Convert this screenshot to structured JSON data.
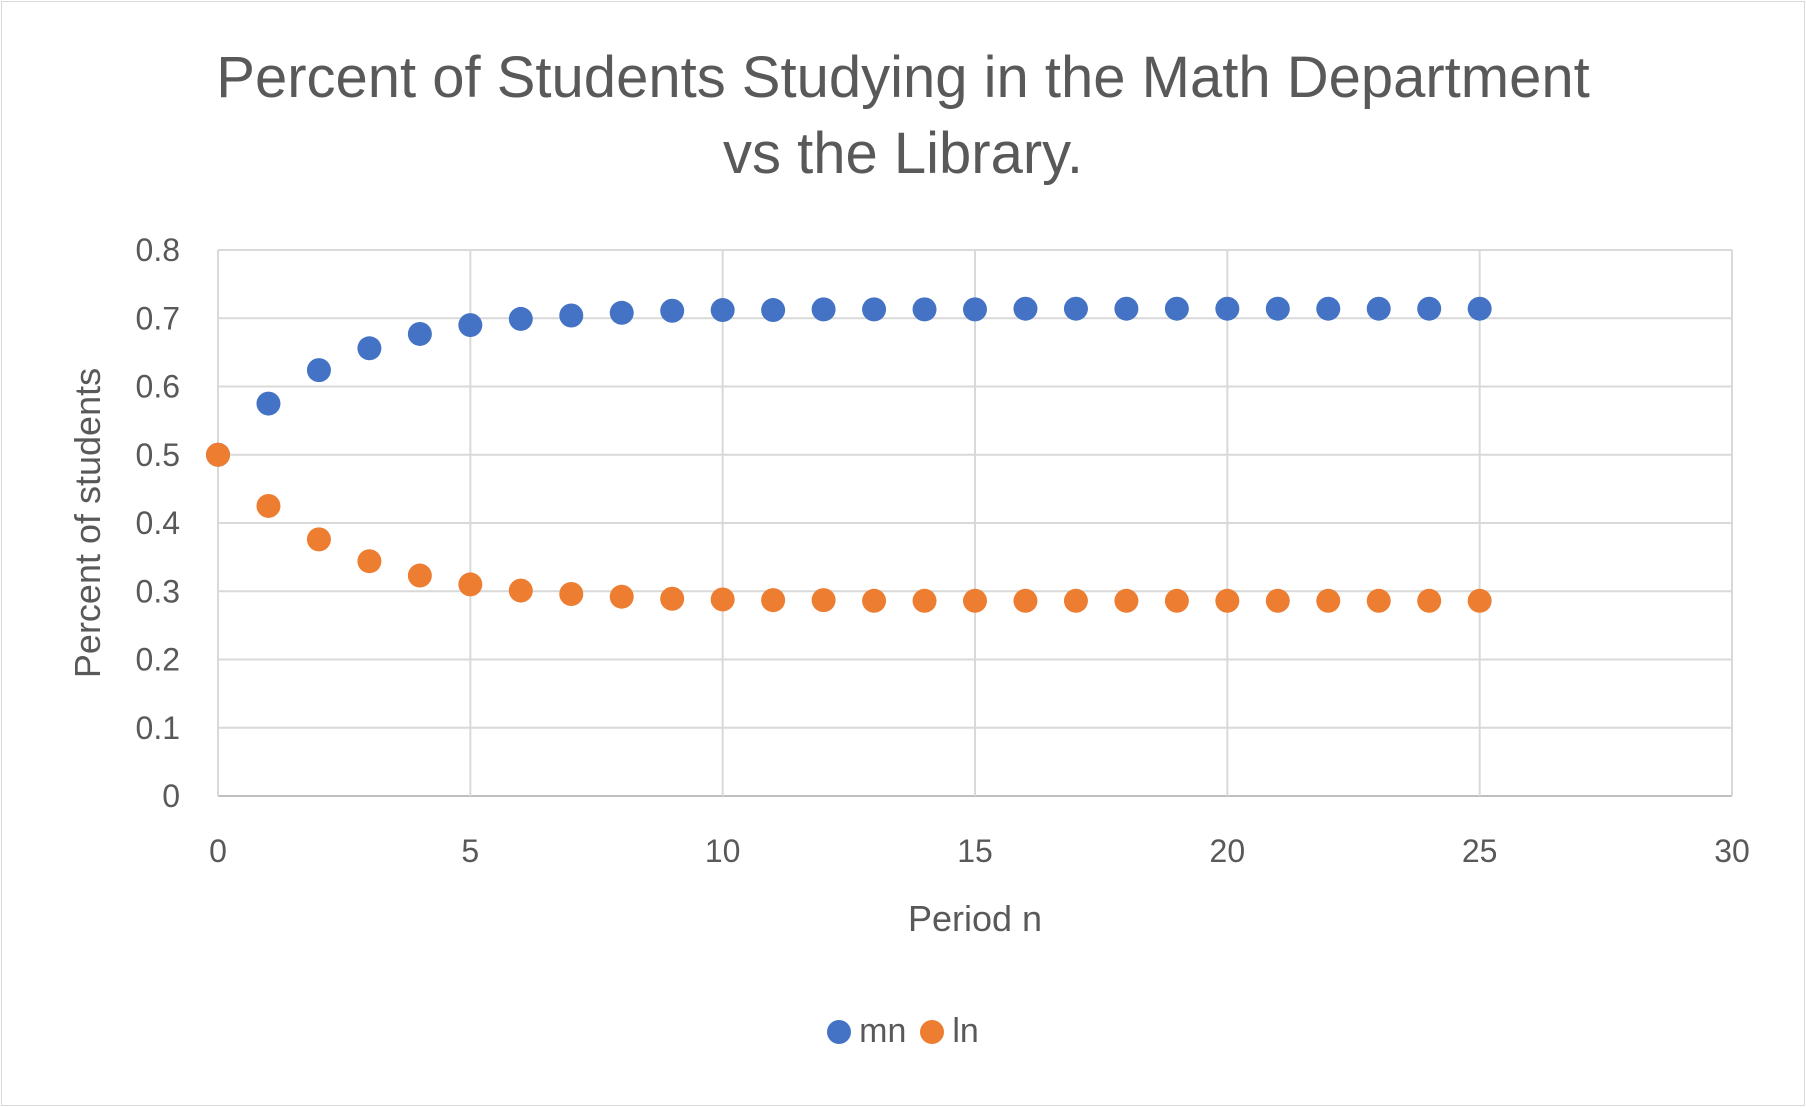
{
  "chart_data": {
    "type": "scatter",
    "title_lines": [
      "Percent of Students Studying in the Math Department",
      "vs the Library."
    ],
    "xlabel": "Period n",
    "ylabel": "Percent of students",
    "xlim": [
      0,
      30
    ],
    "ylim": [
      0,
      0.8
    ],
    "x_ticks": [
      "0",
      "5",
      "10",
      "15",
      "20",
      "25",
      "30"
    ],
    "y_ticks": [
      "0",
      "0.1",
      "0.2",
      "0.3",
      "0.4",
      "0.5",
      "0.6",
      "0.7",
      "0.8"
    ],
    "grid": true,
    "legend_position": "bottom",
    "series": [
      {
        "name": "mn",
        "color": "#4472C4",
        "x": [
          0,
          1,
          2,
          3,
          4,
          5,
          6,
          7,
          8,
          9,
          10,
          11,
          12,
          13,
          14,
          15,
          16,
          17,
          18,
          19,
          20,
          21,
          22,
          23,
          24,
          25
        ],
        "y": [
          0.5,
          0.575,
          0.624,
          0.656,
          0.677,
          0.69,
          0.699,
          0.704,
          0.708,
          0.711,
          0.712,
          0.712,
          0.713,
          0.713,
          0.713,
          0.713,
          0.714,
          0.714,
          0.714,
          0.714,
          0.714,
          0.714,
          0.714,
          0.714,
          0.714,
          0.714
        ]
      },
      {
        "name": "ln",
        "color": "#ED7D31",
        "x": [
          0,
          1,
          2,
          3,
          4,
          5,
          6,
          7,
          8,
          9,
          10,
          11,
          12,
          13,
          14,
          15,
          16,
          17,
          18,
          19,
          20,
          21,
          22,
          23,
          24,
          25
        ],
        "y": [
          0.5,
          0.425,
          0.376,
          0.344,
          0.323,
          0.31,
          0.301,
          0.296,
          0.292,
          0.289,
          0.288,
          0.287,
          0.287,
          0.286,
          0.286,
          0.286,
          0.286,
          0.286,
          0.286,
          0.286,
          0.286,
          0.286,
          0.286,
          0.286,
          0.286,
          0.286
        ]
      }
    ]
  }
}
